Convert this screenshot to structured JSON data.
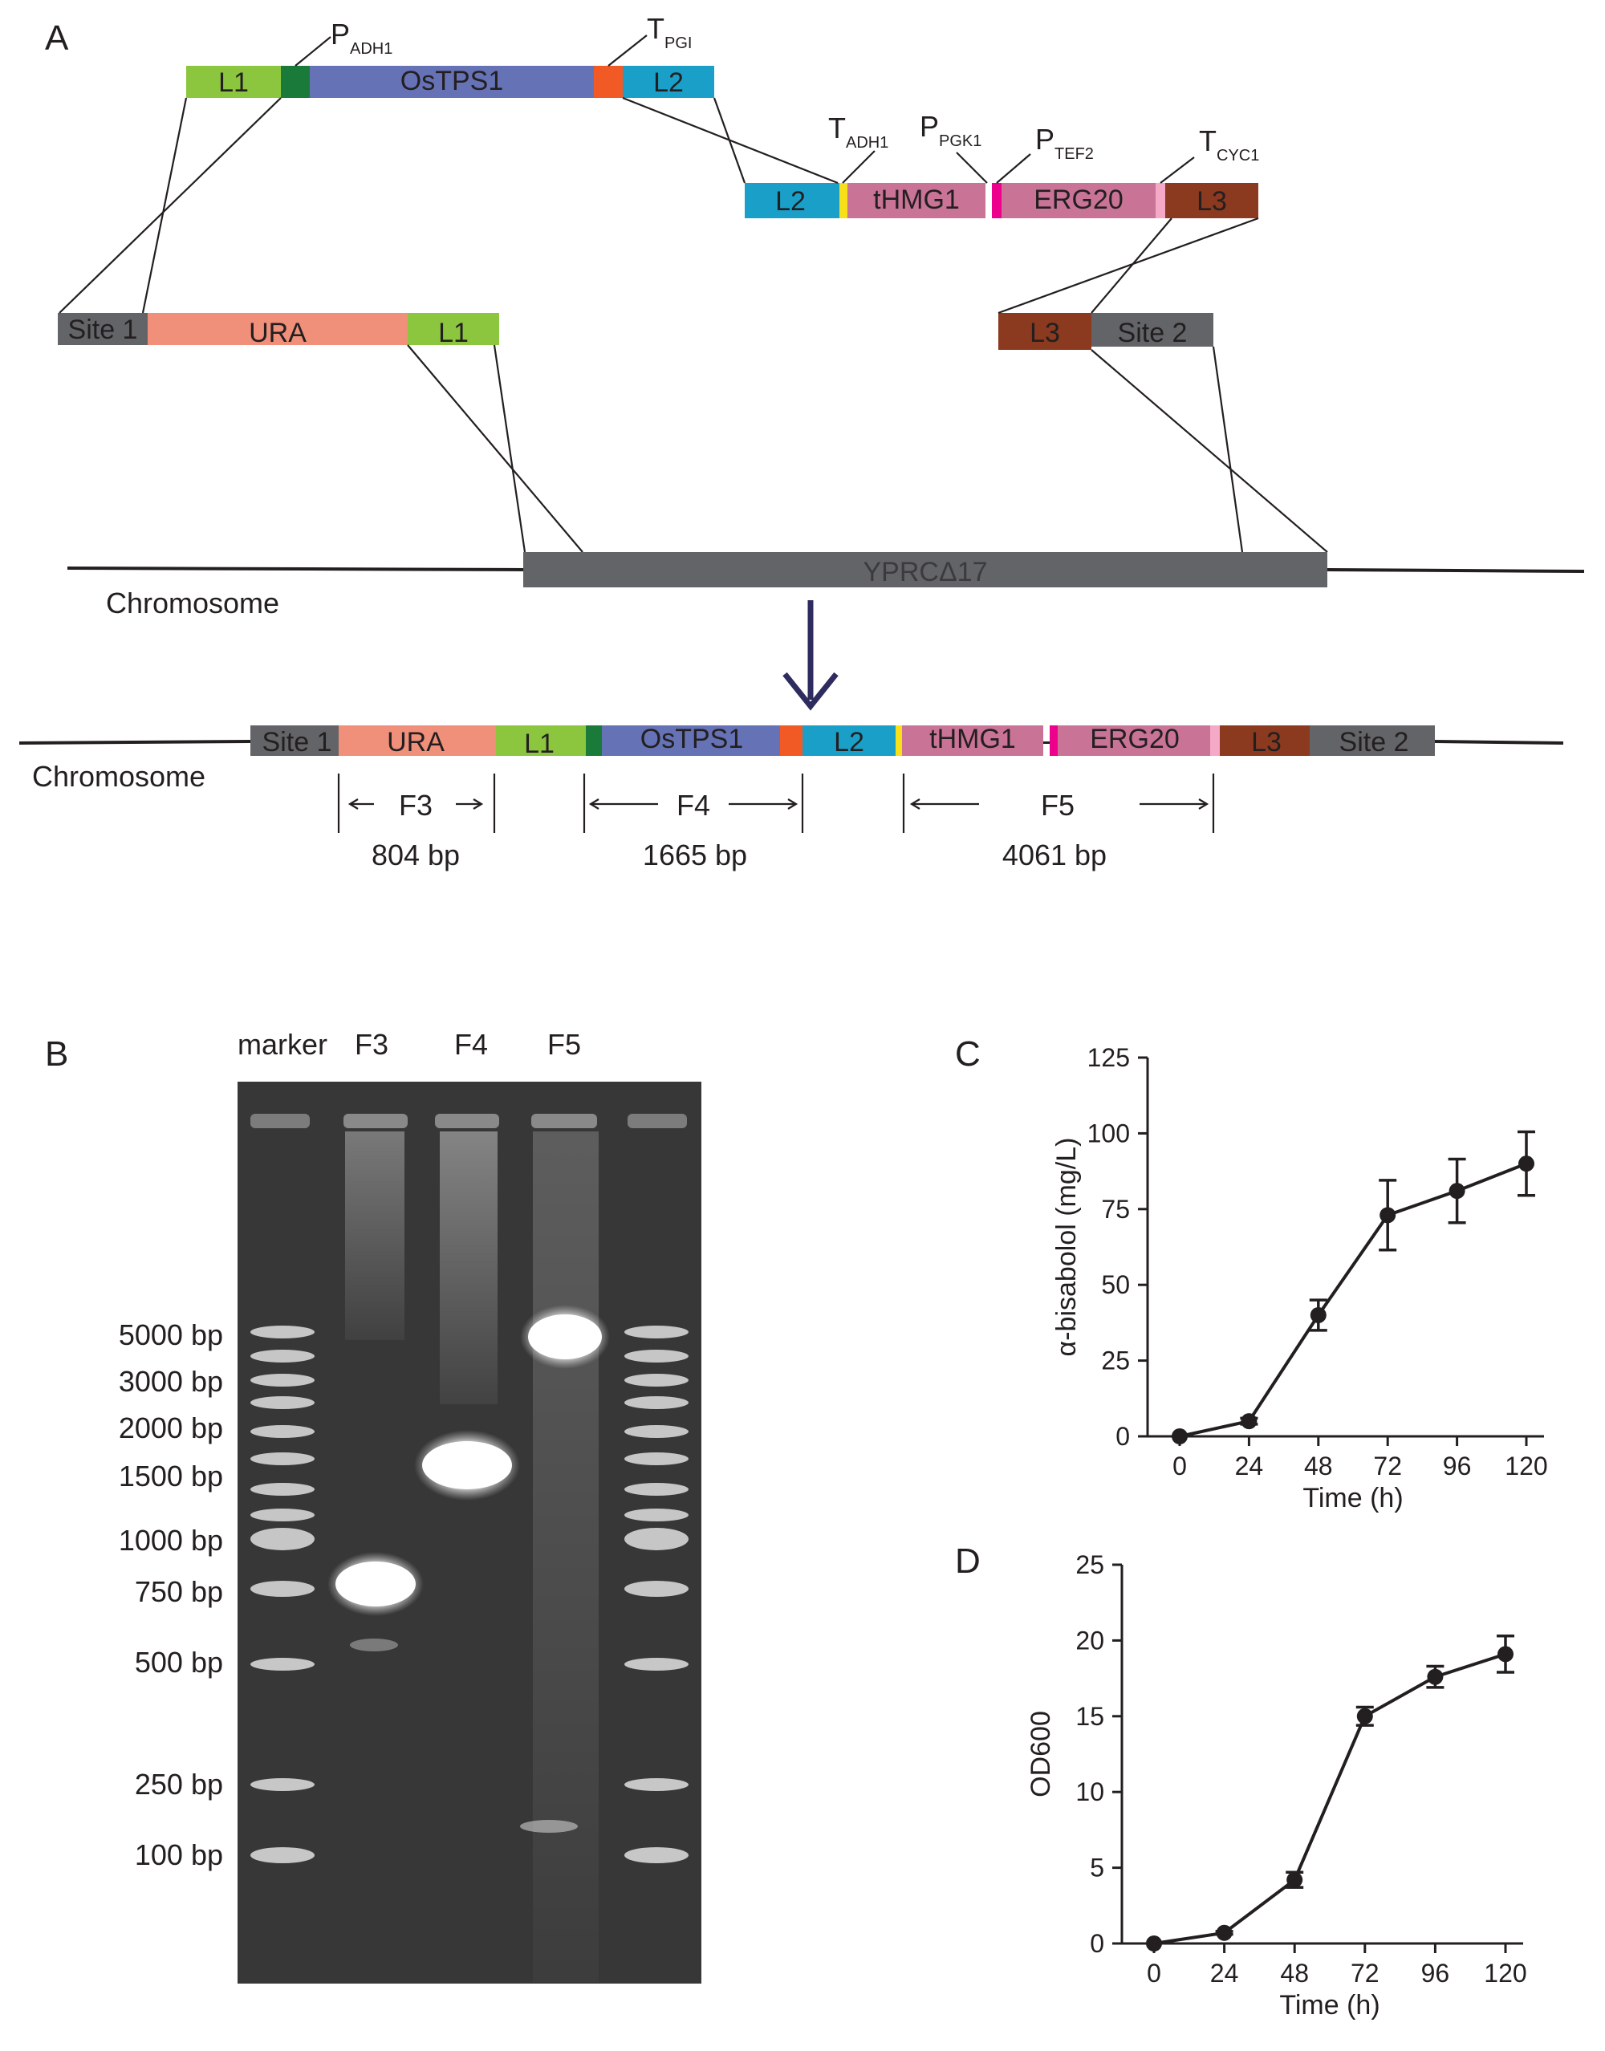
{
  "panels": {
    "a": "A",
    "b": "B",
    "c": "C",
    "d": "D"
  },
  "construct": {
    "cassette1": {
      "l1": "L1",
      "ostps1": "OsTPS1",
      "l2": "L2"
    },
    "cassette2": {
      "l2": "L2",
      "thmg1": "tHMG1",
      "erg20": "ERG20",
      "l3": "L3"
    },
    "left_arm": {
      "site1": "Site 1",
      "ura": "URA",
      "l1": "L1"
    },
    "right_arm": {
      "l3": "L3",
      "site2": "Site 2"
    },
    "elements": {
      "p_adh1": {
        "main": "P",
        "sub": "ADH1"
      },
      "t_pgi": {
        "main": "T",
        "sub": "PGI"
      },
      "t_adh1": {
        "main": "T",
        "sub": "ADH1"
      },
      "p_pgk1": {
        "main": "P",
        "sub": "PGK1"
      },
      "p_tef2": {
        "main": "P",
        "sub": "TEF2"
      },
      "t_cyc1": {
        "main": "T",
        "sub": "CYC1"
      }
    },
    "locus": "YPRCΔ17",
    "chromosome_top": "Chromosome",
    "chromosome_bottom": "Chromosome",
    "integrated": {
      "site1": "Site 1",
      "ura": "URA",
      "l1": "L1",
      "ostps1": "OsTPS1",
      "l2": "L2",
      "thmg1": "tHMG1",
      "erg20": "ERG20",
      "l3": "L3",
      "site2": "Site 2"
    },
    "fragments": [
      {
        "name": "F3",
        "size": "804 bp"
      },
      {
        "name": "F4",
        "size": "1665 bp"
      },
      {
        "name": "F5",
        "size": "4061 bp"
      }
    ]
  },
  "colors": {
    "L1": "#8cc63f",
    "P_ADH1": "#1a7a3a",
    "OsTPS1": "#6672b6",
    "T_PGI": "#f15a24",
    "L2": "#1aa0c8",
    "T_ADH1": "#f7e01a",
    "tHMG1": "#c97496",
    "P_TEF2": "#ec008c",
    "ERG20": "#c97496",
    "T_CYC1": "#f4a9c6",
    "L3": "#8b3a1f",
    "Site": "#636467",
    "URA": "#f0907a",
    "locus": "#636467"
  },
  "gel": {
    "lanes": [
      "marker",
      "F3",
      "F4",
      "F5"
    ],
    "marker_labels": [
      "5000 bp",
      "3000 bp",
      "2000 bp",
      "1500 bp",
      "1000 bp",
      "750 bp",
      "500 bp",
      "250 bp",
      "100 bp"
    ]
  },
  "chart_data": [
    {
      "panel": "C",
      "type": "line",
      "x": [
        0,
        24,
        48,
        72,
        96,
        120
      ],
      "y": [
        0,
        5,
        40,
        73,
        81,
        90
      ],
      "error": [
        0,
        1,
        5,
        11.5,
        10.5,
        10.5
      ],
      "xlabel": "Time (h)",
      "ylabel": "α-bisabolol (mg/L)",
      "xticks": [
        0,
        24,
        48,
        72,
        96,
        120
      ],
      "yticks": [
        0,
        25,
        50,
        75,
        100,
        125
      ],
      "xlim": [
        0,
        120
      ],
      "ylim": [
        0,
        125
      ],
      "grid": false
    },
    {
      "panel": "D",
      "type": "line",
      "x": [
        0,
        24,
        48,
        72,
        96,
        120
      ],
      "y": [
        0,
        0.7,
        4.2,
        15.0,
        17.6,
        19.1
      ],
      "error": [
        0,
        0.1,
        0.5,
        0.6,
        0.7,
        1.2
      ],
      "xlabel": "Time (h)",
      "ylabel": "OD600",
      "xticks": [
        0,
        24,
        48,
        72,
        96,
        120
      ],
      "yticks": [
        0,
        5,
        10,
        15,
        20,
        25
      ],
      "xlim": [
        0,
        120
      ],
      "ylim": [
        0,
        25
      ],
      "grid": false
    }
  ]
}
